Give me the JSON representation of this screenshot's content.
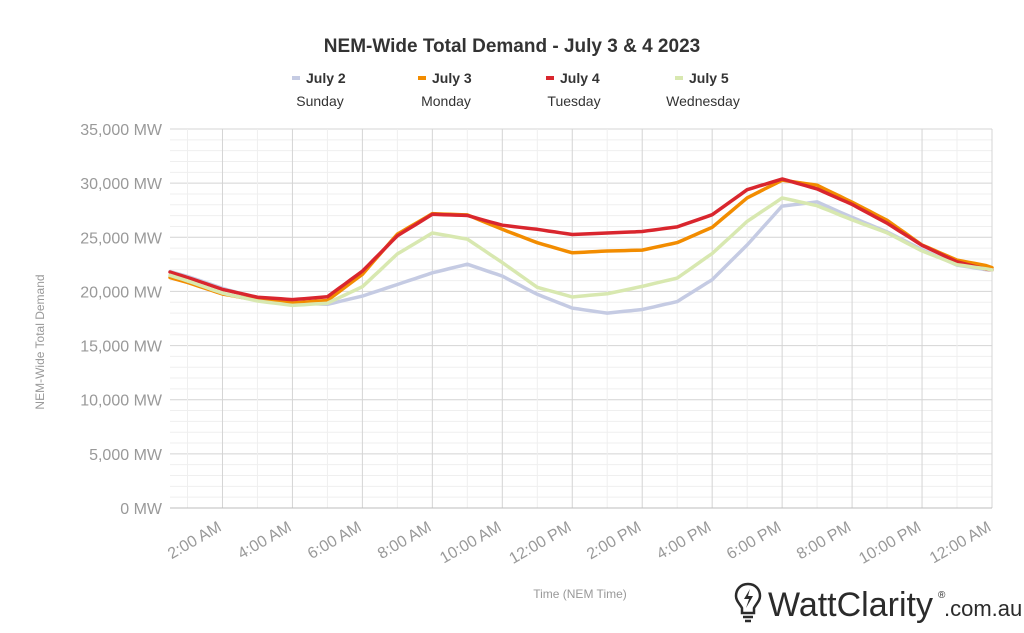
{
  "chart_data": {
    "type": "line",
    "title": "NEM-Wide Total Demand - July 3 & 4 2023",
    "xlabel": "Time (NEM Time)",
    "ylabel": "NEM-Wide Total Demand",
    "ylim": [
      0,
      35000
    ],
    "y_ticks": [
      "0 MW",
      "5,000 MW",
      "10,000 MW",
      "15,000 MW",
      "20,000 MW",
      "25,000 MW",
      "30,000 MW",
      "35,000 MW"
    ],
    "x_ticks": [
      "2:00 AM",
      "4:00 AM",
      "6:00 AM",
      "8:00 AM",
      "10:00 AM",
      "12:00 PM",
      "2:00 PM",
      "4:00 PM",
      "6:00 PM",
      "8:00 PM",
      "10:00 PM",
      "12:00 AM"
    ],
    "x_hours": [
      0,
      1,
      2,
      3,
      4,
      5,
      6,
      7,
      8,
      9,
      10,
      11,
      12,
      13,
      14,
      15,
      16,
      17,
      18,
      19,
      20,
      21,
      22,
      23,
      24
    ],
    "grid": true,
    "legend_position": "top",
    "series": [
      {
        "name": "July 2",
        "subtitle": "Sunday",
        "color": "#c5cbe3",
        "values": [
          22200,
          21300,
          20200,
          19300,
          18900,
          18800,
          19600,
          20700,
          21800,
          22600,
          21500,
          19800,
          18500,
          18000,
          18300,
          19000,
          21000,
          24200,
          27800,
          28200,
          26800,
          25500,
          23900,
          22500,
          22000
        ]
      },
      {
        "name": "July 3",
        "subtitle": "Monday",
        "color": "#f28c00",
        "values": [
          21800,
          20900,
          19800,
          19200,
          18900,
          19100,
          21500,
          25200,
          27100,
          27000,
          25700,
          24500,
          23600,
          23800,
          23900,
          24600,
          26000,
          28700,
          30300,
          29800,
          28200,
          26500,
          24200,
          22800,
          22200
        ]
      },
      {
        "name": "July 4",
        "subtitle": "Tuesday",
        "color": "#d9262e",
        "values": [
          22200,
          21200,
          20100,
          19400,
          19200,
          19500,
          21900,
          25200,
          27200,
          27100,
          26200,
          25800,
          25300,
          25400,
          25500,
          25900,
          27000,
          29300,
          30300,
          29400,
          28000,
          26300,
          24300,
          22800,
          22000
        ]
      },
      {
        "name": "July 5",
        "subtitle": "Wednesday",
        "color": "#d8e8b0",
        "values": [
          22000,
          21000,
          19900,
          19200,
          18800,
          19000,
          20500,
          23500,
          25400,
          24800,
          22600,
          20300,
          19400,
          19700,
          20400,
          21200,
          23500,
          26500,
          28700,
          28000,
          26700,
          25500,
          23800,
          22500,
          22000
        ]
      }
    ]
  },
  "brand": {
    "name": "WattClarity",
    "registered": "®",
    "domain": ".com.au"
  }
}
